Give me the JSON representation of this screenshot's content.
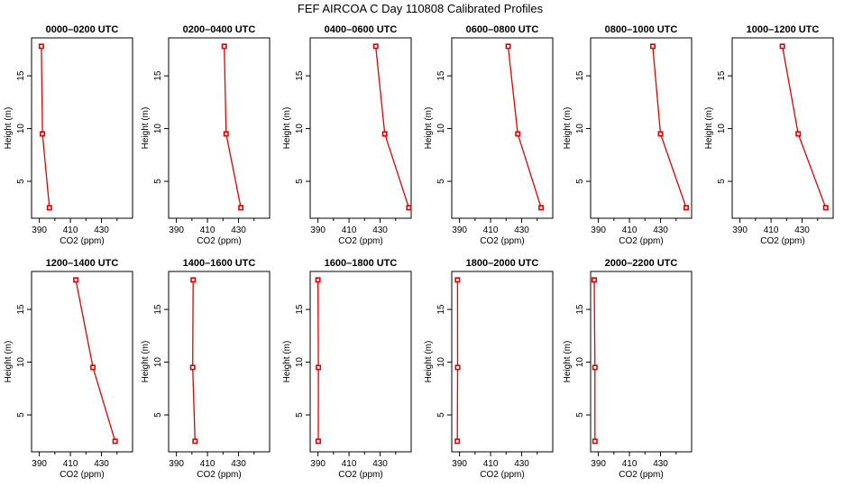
{
  "figure": {
    "title": "FEF AIRCOA C  Day 110808  Calibrated Profiles"
  },
  "chart_data": [
    {
      "type": "line",
      "title": "0000–0200 UTC",
      "xlabel": "CO2 (ppm)",
      "ylabel": "Height (m)",
      "xlim": [
        385,
        450
      ],
      "ylim": [
        1.5,
        18.6
      ],
      "xticks": [
        390,
        410,
        430
      ],
      "yticks": [
        5,
        10,
        15
      ],
      "grid": false,
      "series": [
        {
          "x": [
            396.5,
            392.0,
            391.3
          ],
          "y": [
            2.5,
            9.5,
            17.8
          ]
        }
      ]
    },
    {
      "type": "line",
      "title": "0200–0400 UTC",
      "xlabel": "CO2 (ppm)",
      "ylabel": "Height (m)",
      "xlim": [
        385,
        450
      ],
      "ylim": [
        1.5,
        18.6
      ],
      "xticks": [
        390,
        410,
        430
      ],
      "yticks": [
        5,
        10,
        15
      ],
      "grid": false,
      "series": [
        {
          "x": [
            431.5,
            422.0,
            420.8
          ],
          "y": [
            2.5,
            9.5,
            17.8
          ]
        }
      ]
    },
    {
      "type": "line",
      "title": "0400–0600 UTC",
      "xlabel": "CO2 (ppm)",
      "ylabel": "Height (m)",
      "xlim": [
        385,
        450
      ],
      "ylim": [
        1.5,
        18.6
      ],
      "xticks": [
        390,
        410,
        430
      ],
      "yticks": [
        5,
        10,
        15
      ],
      "grid": false,
      "series": [
        {
          "x": [
            448.5,
            433.0,
            427.2
          ],
          "y": [
            2.5,
            9.5,
            17.8
          ]
        }
      ]
    },
    {
      "type": "line",
      "title": "0600–0800 UTC",
      "xlabel": "CO2 (ppm)",
      "ylabel": "Height (m)",
      "xlim": [
        385,
        450
      ],
      "ylim": [
        1.5,
        18.6
      ],
      "xticks": [
        390,
        410,
        430
      ],
      "yticks": [
        5,
        10,
        15
      ],
      "grid": false,
      "series": [
        {
          "x": [
            442.5,
            427.5,
            421.3
          ],
          "y": [
            2.5,
            9.5,
            17.8
          ]
        }
      ]
    },
    {
      "type": "line",
      "title": "0800–1000 UTC",
      "xlabel": "CO2 (ppm)",
      "ylabel": "Height (m)",
      "xlim": [
        385,
        450
      ],
      "ylim": [
        1.5,
        18.6
      ],
      "xticks": [
        390,
        410,
        430
      ],
      "yticks": [
        5,
        10,
        15
      ],
      "grid": false,
      "series": [
        {
          "x": [
            446.5,
            430.0,
            425.0
          ],
          "y": [
            2.5,
            9.5,
            17.8
          ]
        }
      ]
    },
    {
      "type": "line",
      "title": "1000–1200 UTC",
      "xlabel": "CO2 (ppm)",
      "ylabel": "Height (m)",
      "xlim": [
        385,
        450
      ],
      "ylim": [
        1.5,
        18.6
      ],
      "xticks": [
        390,
        410,
        430
      ],
      "yticks": [
        5,
        10,
        15
      ],
      "grid": false,
      "series": [
        {
          "x": [
            445.2,
            427.5,
            417.3
          ],
          "y": [
            2.5,
            9.5,
            17.8
          ]
        }
      ]
    },
    {
      "type": "line",
      "title": "1200–1400 UTC",
      "xlabel": "CO2 (ppm)",
      "ylabel": "Height (m)",
      "xlim": [
        385,
        450
      ],
      "ylim": [
        1.5,
        18.6
      ],
      "xticks": [
        390,
        410,
        430
      ],
      "yticks": [
        5,
        10,
        15
      ],
      "grid": false,
      "series": [
        {
          "x": [
            438.8,
            424.5,
            413.5
          ],
          "y": [
            2.5,
            9.5,
            17.8
          ]
        }
      ]
    },
    {
      "type": "line",
      "title": "1400–1600 UTC",
      "xlabel": "CO2 (ppm)",
      "ylabel": "Height (m)",
      "xlim": [
        385,
        450
      ],
      "ylim": [
        1.5,
        18.6
      ],
      "xticks": [
        390,
        410,
        430
      ],
      "yticks": [
        5,
        10,
        15
      ],
      "grid": false,
      "series": [
        {
          "x": [
            402.0,
            400.5,
            400.8
          ],
          "y": [
            2.5,
            9.5,
            17.8
          ]
        }
      ]
    },
    {
      "type": "line",
      "title": "1600–1800 UTC",
      "xlabel": "CO2 (ppm)",
      "ylabel": "Height (m)",
      "xlim": [
        385,
        450
      ],
      "ylim": [
        1.5,
        18.6
      ],
      "xticks": [
        390,
        410,
        430
      ],
      "yticks": [
        5,
        10,
        15
      ],
      "grid": false,
      "series": [
        {
          "x": [
            390.2,
            390.3,
            390.0
          ],
          "y": [
            2.5,
            9.5,
            17.8
          ]
        }
      ]
    },
    {
      "type": "line",
      "title": "1800–2000 UTC",
      "xlabel": "CO2 (ppm)",
      "ylabel": "Height (m)",
      "xlim": [
        385,
        450
      ],
      "ylim": [
        1.5,
        18.6
      ],
      "xticks": [
        390,
        410,
        430
      ],
      "yticks": [
        5,
        10,
        15
      ],
      "grid": false,
      "series": [
        {
          "x": [
            388.6,
            388.8,
            388.7
          ],
          "y": [
            2.5,
            9.5,
            17.8
          ]
        }
      ]
    },
    {
      "type": "line",
      "title": "2000–2200 UTC",
      "xlabel": "CO2 (ppm)",
      "ylabel": "Height (m)",
      "xlim": [
        385,
        450
      ],
      "ylim": [
        1.5,
        18.6
      ],
      "xticks": [
        390,
        410,
        430
      ],
      "yticks": [
        5,
        10,
        15
      ],
      "grid": false,
      "series": [
        {
          "x": [
            387.8,
            387.8,
            387.3
          ],
          "y": [
            2.5,
            9.5,
            17.8
          ]
        }
      ]
    }
  ]
}
